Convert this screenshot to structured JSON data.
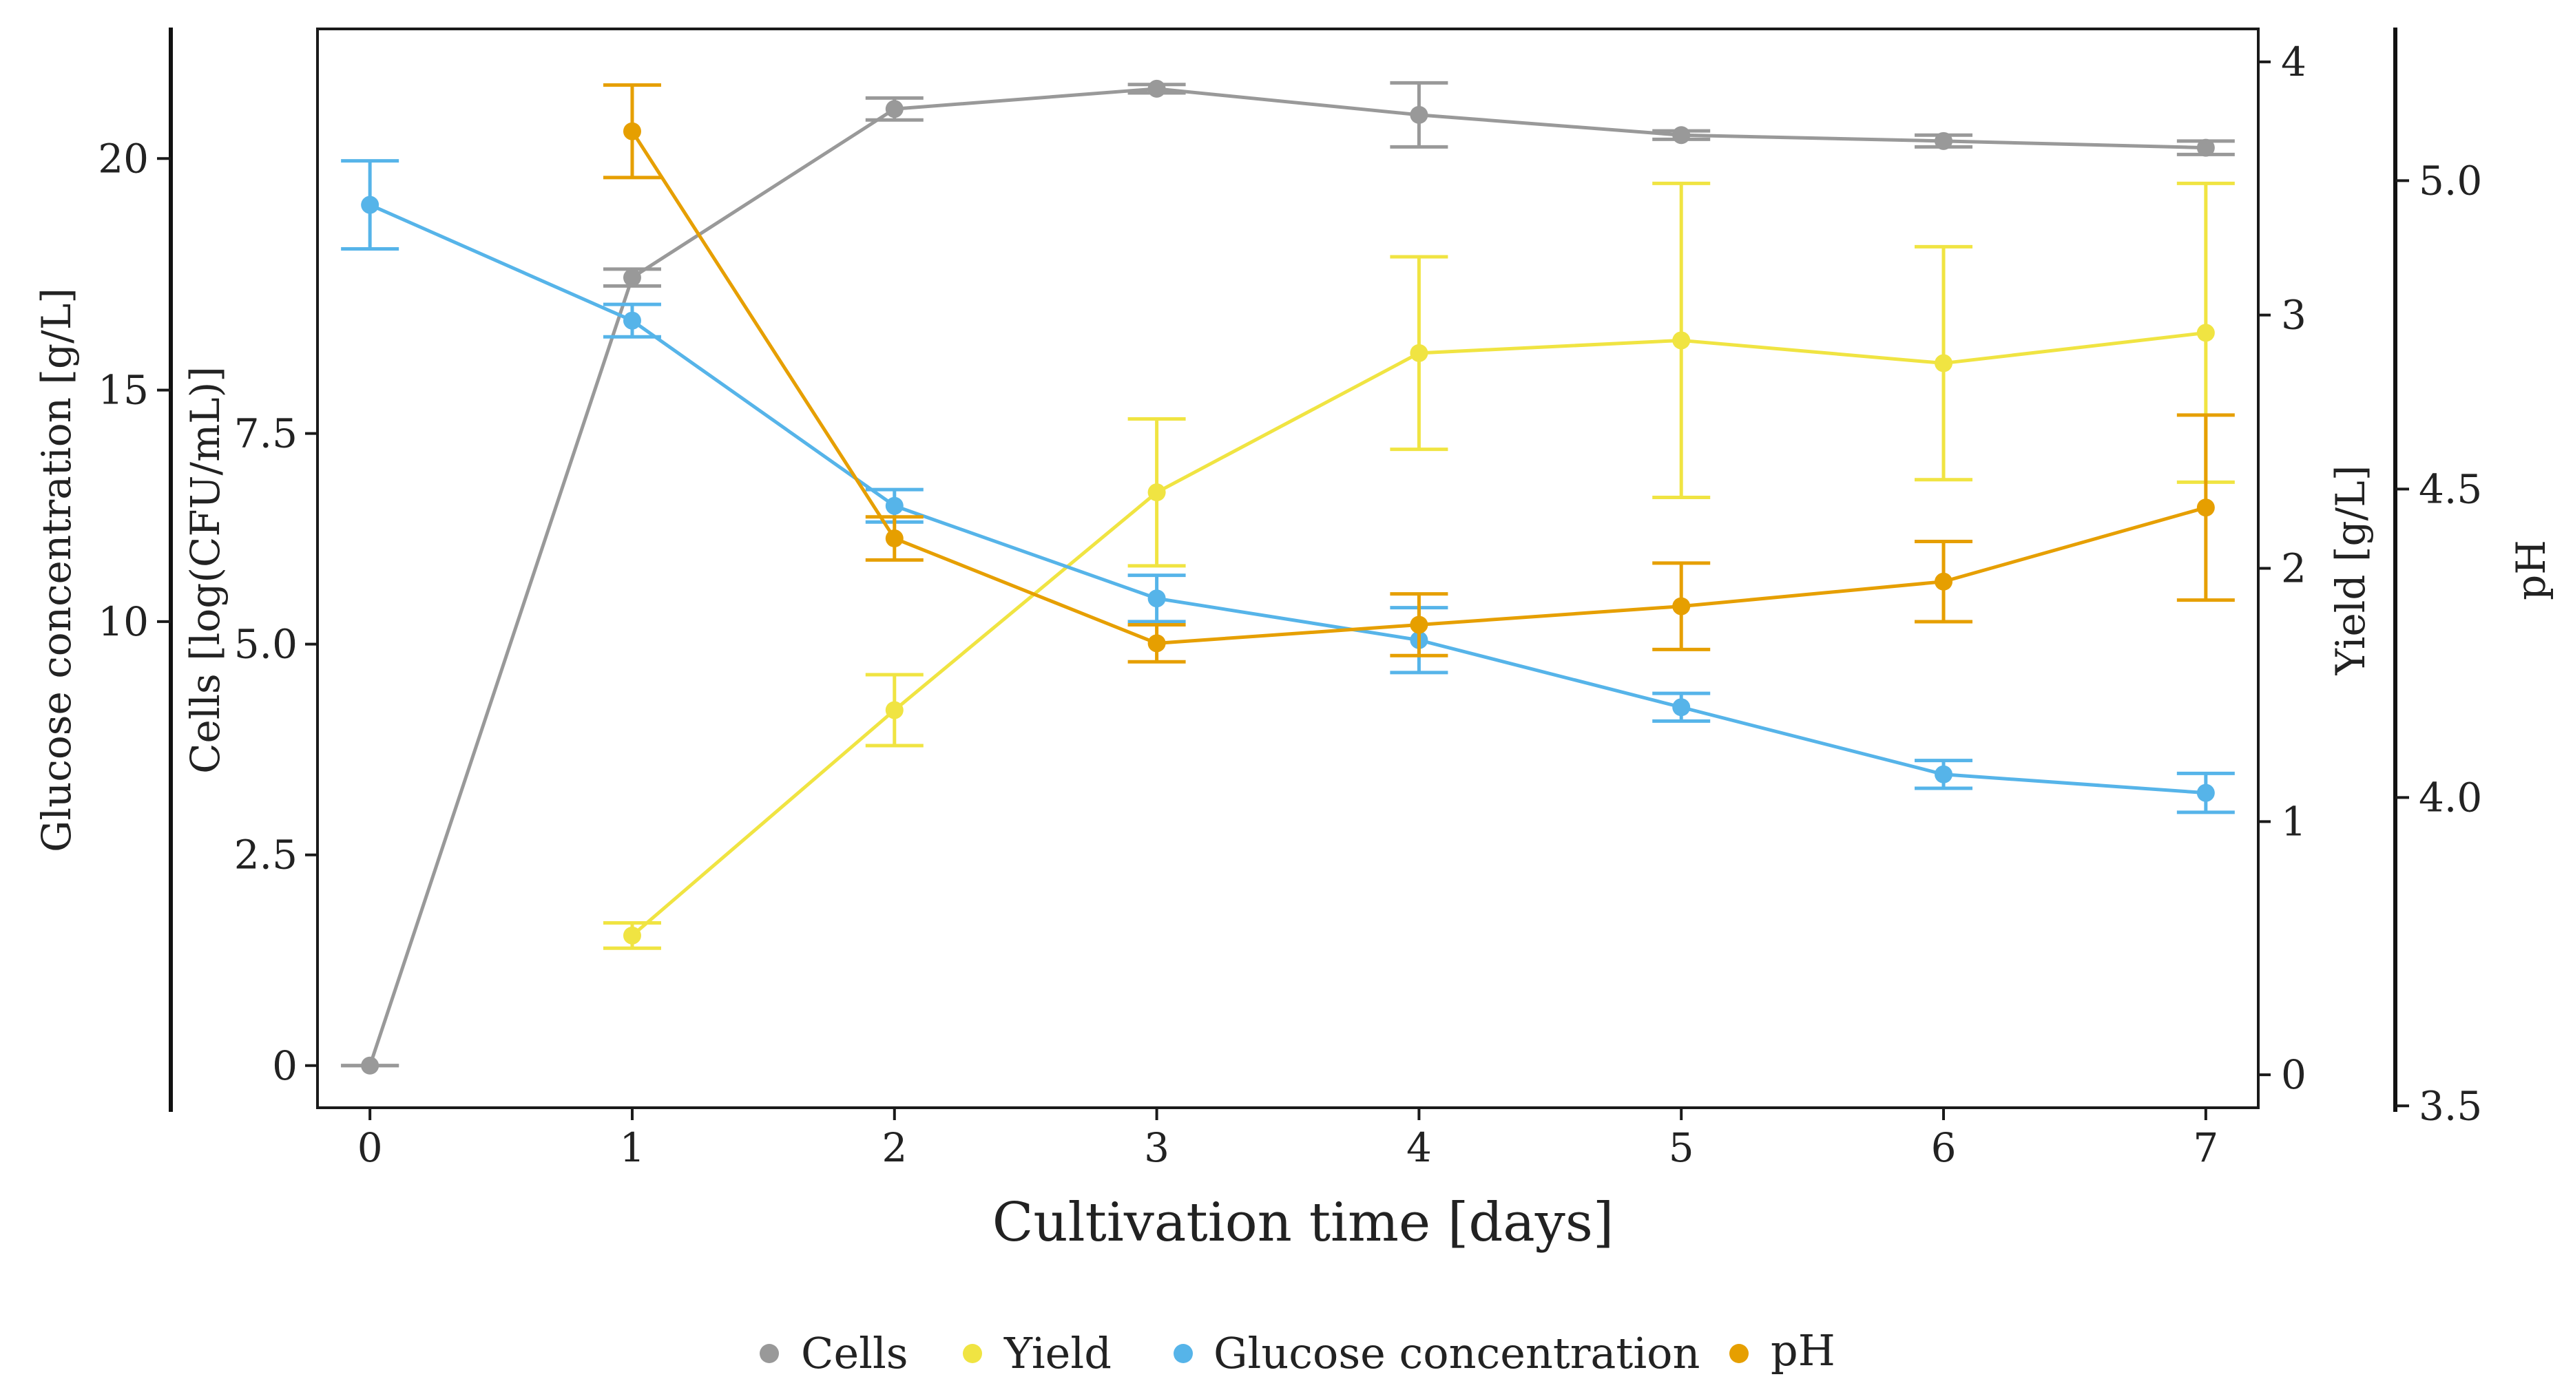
{
  "chart_data": {
    "type": "line",
    "x": [
      0,
      1,
      2,
      3,
      4,
      5,
      6,
      7
    ],
    "xlabel": "Cultivation time [days]",
    "x_tick_labels": [
      "0",
      "1",
      "2",
      "3",
      "4",
      "5",
      "6",
      "7"
    ],
    "xlim": [
      -0.2,
      7.2
    ],
    "axes": {
      "glucose": {
        "title": "Glucose concentration [g/L]",
        "lim": [
          -0.5,
          22.8
        ],
        "ticks": [
          10,
          15,
          20
        ],
        "tick_labels": [
          "10",
          "15",
          "20"
        ]
      },
      "cells": {
        "title": "Cells [log(CFU/mL)]",
        "lim": [
          -0.5,
          12.3
        ],
        "ticks": [
          0,
          2.5,
          5.0,
          7.5
        ],
        "tick_labels": [
          "0",
          "2.5",
          "5.0",
          "7.5"
        ]
      },
      "yield": {
        "title": "Yield [g/L]",
        "lim": [
          -0.13,
          4.13
        ],
        "ticks": [
          0,
          1,
          2,
          3,
          4
        ],
        "tick_labels": [
          "0",
          "1",
          "2",
          "3",
          "4"
        ]
      },
      "ph": {
        "title": "pH",
        "lim": [
          3.497,
          5.246
        ],
        "ticks": [
          3.5,
          4.0,
          4.5,
          5.0
        ],
        "tick_labels": [
          "3.5",
          "4.0",
          "4.5",
          "5.0"
        ]
      }
    },
    "series": [
      {
        "name": "Cells",
        "axis": "cells",
        "color": "#999999",
        "x": [
          0,
          1,
          2,
          3,
          4,
          5,
          6,
          7
        ],
        "values": [
          0.0,
          9.35,
          11.35,
          11.59,
          11.28,
          11.04,
          10.97,
          10.89
        ],
        "err": [
          0.0,
          0.1,
          0.13,
          0.05,
          0.38,
          0.05,
          0.07,
          0.08
        ]
      },
      {
        "name": "Yield",
        "axis": "yield",
        "color": "#F0E442",
        "x": [
          1,
          2,
          3,
          4,
          5,
          6,
          7
        ],
        "values": [
          0.55,
          1.44,
          2.3,
          2.85,
          2.9,
          2.81,
          2.93
        ],
        "err": [
          0.05,
          0.14,
          0.29,
          0.38,
          0.62,
          0.46,
          0.59
        ]
      },
      {
        "name": "Glucose concentration",
        "axis": "glucose",
        "color": "#56B4E9",
        "x": [
          0,
          1,
          2,
          3,
          4,
          5,
          6,
          7
        ],
        "values": [
          19.0,
          16.5,
          12.5,
          10.5,
          9.6,
          8.15,
          6.7,
          6.3
        ],
        "err": [
          0.95,
          0.35,
          0.35,
          0.5,
          0.7,
          0.3,
          0.3,
          0.42
        ]
      },
      {
        "name": "pH",
        "axis": "ph",
        "color": "#E69F00",
        "x": [
          1,
          2,
          3,
          4,
          5,
          6,
          7
        ],
        "values": [
          5.08,
          4.42,
          4.25,
          4.28,
          4.31,
          4.35,
          4.47
        ],
        "err": [
          0.075,
          0.035,
          0.03,
          0.05,
          0.07,
          0.065,
          0.15
        ]
      }
    ],
    "legend": {
      "position": "bottom",
      "entries": [
        "Cells",
        "Yield",
        "Glucose concentration",
        "pH"
      ]
    }
  }
}
